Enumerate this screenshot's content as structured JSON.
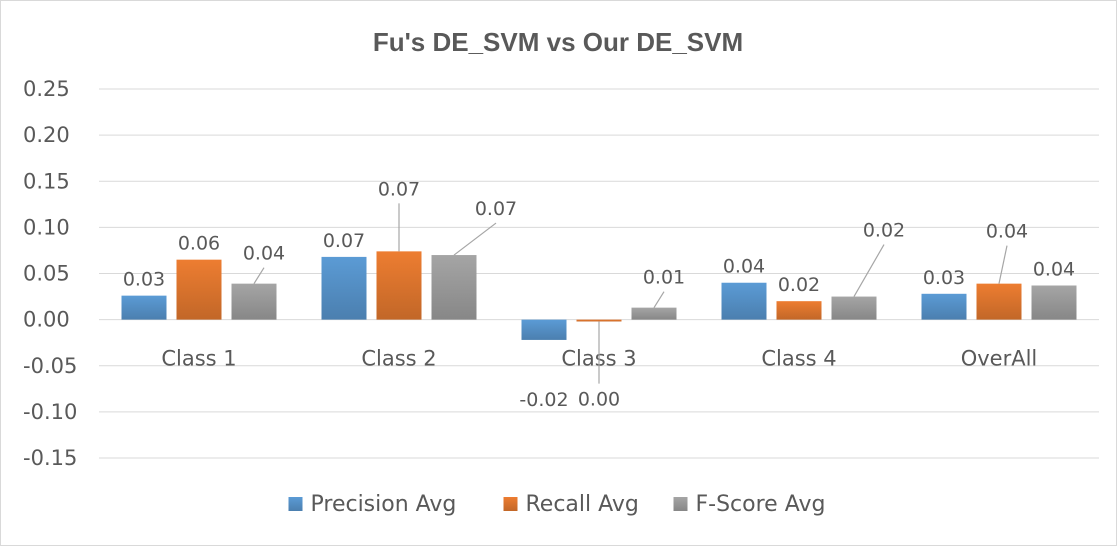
{
  "chart_data": {
    "type": "bar",
    "title": "Fu's DE_SVM vs Our DE_SVM",
    "categories": [
      "Class 1",
      "Class 2",
      "Class 3",
      "Class 4",
      "OverAll"
    ],
    "series": [
      {
        "name": "Precision Avg",
        "color": "#5b9bd5",
        "values": [
          0.026,
          0.068,
          -0.022,
          0.04,
          0.028
        ],
        "labels": [
          "0.03",
          "0.07",
          "-0.02",
          "0.04",
          "0.03"
        ]
      },
      {
        "name": "Recall Avg",
        "color": "#ed7d31",
        "values": [
          0.065,
          0.074,
          -0.002,
          0.02,
          0.039
        ],
        "labels": [
          "0.06",
          "0.07",
          "0.00",
          "0.02",
          "0.04"
        ]
      },
      {
        "name": "F-Score Avg",
        "color": "#a5a5a5",
        "values": [
          0.039,
          0.07,
          0.013,
          0.025,
          0.037
        ],
        "labels": [
          "0.04",
          "0.07",
          "0.01",
          "0.02",
          "0.04"
        ]
      }
    ],
    "ylim": [
      -0.15,
      0.25
    ],
    "yticks": [
      0.25,
      0.2,
      0.15,
      0.1,
      0.05,
      0.0,
      -0.05,
      -0.1,
      -0.15
    ],
    "ytick_labels": [
      "0.25",
      "0.20",
      "0.15",
      "0.10",
      "0.05",
      "0.00",
      "-0.05",
      "-0.10",
      "-0.15"
    ],
    "xlabel": "",
    "ylabel": "",
    "grid": true,
    "legend": "bottom"
  }
}
